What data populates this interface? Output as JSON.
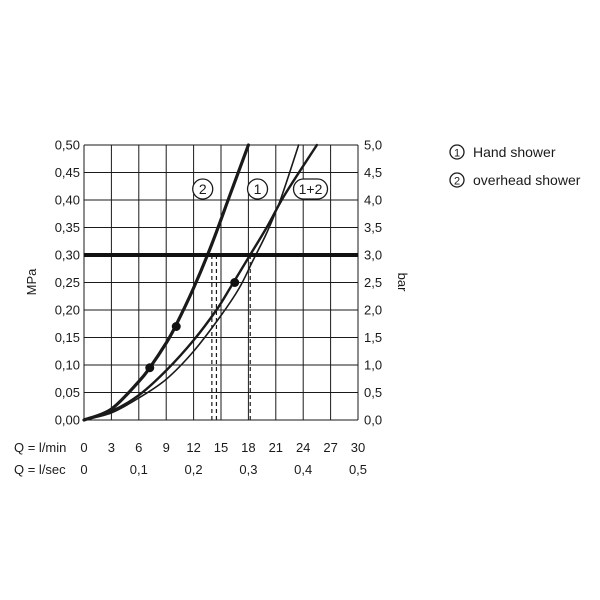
{
  "chart_data": {
    "type": "line",
    "title": "",
    "grid": true,
    "legend_position": "top-right",
    "y_left": {
      "label": "MPa",
      "lim": [
        0,
        0.5
      ],
      "ticks": [
        "0,00",
        "0,05",
        "0,10",
        "0,15",
        "0,20",
        "0,25",
        "0,30",
        "0,35",
        "0,40",
        "0,45",
        "0,50"
      ]
    },
    "y_right": {
      "label": "bar",
      "lim": [
        0,
        5
      ],
      "ticks": [
        "0,0",
        "0,5",
        "1,0",
        "1,5",
        "2,0",
        "2,5",
        "3,0",
        "3,5",
        "4,0",
        "4,5",
        "5,0"
      ]
    },
    "x_lpm": {
      "label": "Q = l/min",
      "lim": [
        0,
        30
      ],
      "ticks": [
        "0",
        "3",
        "6",
        "9",
        "12",
        "15",
        "18",
        "21",
        "24",
        "27",
        "30"
      ]
    },
    "x_lps": {
      "label": "Q = l/sec",
      "ticks": [
        {
          "value": 0,
          "text": "0"
        },
        {
          "value": 6,
          "text": "0,1"
        },
        {
          "value": 12,
          "text": "0,2"
        },
        {
          "value": 18,
          "text": "0,3"
        },
        {
          "value": 24,
          "text": "0,4"
        },
        {
          "value": 30,
          "text": "0,5"
        }
      ]
    },
    "series": [
      {
        "name": "1",
        "badge": "1",
        "stroke": "#1a1a1a",
        "x": [
          0,
          3,
          6,
          9,
          12,
          14.5,
          16,
          18,
          20,
          22,
          25.5
        ],
        "y": [
          0,
          0.016,
          0.045,
          0.09,
          0.145,
          0.2,
          0.24,
          0.295,
          0.35,
          0.41,
          0.5
        ]
      },
      {
        "name": "2",
        "badge": "2",
        "stroke": "#1a1a1a",
        "x": [
          0,
          3,
          6,
          7.2,
          9,
          10,
          12,
          14,
          16,
          18
        ],
        "y": [
          0,
          0.02,
          0.07,
          0.095,
          0.14,
          0.17,
          0.24,
          0.32,
          0.41,
          0.5
        ]
      },
      {
        "name": "1+2",
        "badge": "1+2",
        "stroke": "#1a1a1a",
        "x": [
          0,
          3,
          6,
          9,
          12,
          15,
          17,
          18.5,
          20,
          21.5,
          23.5
        ],
        "y": [
          0,
          0.013,
          0.04,
          0.074,
          0.125,
          0.19,
          0.24,
          0.29,
          0.34,
          0.4,
          0.5
        ]
      }
    ],
    "markers": [
      {
        "x": 7.2,
        "y": 0.095
      },
      {
        "x": 10.1,
        "y": 0.17
      },
      {
        "x": 16.5,
        "y": 0.25
      }
    ],
    "reference_line": {
      "y": 0.3,
      "label": "3,0 bar"
    },
    "drop_lines": [
      {
        "x": 14.0,
        "y": 0.3
      },
      {
        "x": 14.5,
        "y": 0.3
      },
      {
        "x": 18.2,
        "y": 0.3
      }
    ],
    "series_badges": [
      {
        "text": "2",
        "x": 13,
        "y": 0.42
      },
      {
        "text": "1",
        "x": 19,
        "y": 0.42
      },
      {
        "text": "1+2",
        "x": 24.8,
        "y": 0.42
      }
    ]
  },
  "legend": [
    {
      "badge": "1",
      "text": "Hand shower"
    },
    {
      "badge": "2",
      "text": "overhead shower"
    }
  ]
}
